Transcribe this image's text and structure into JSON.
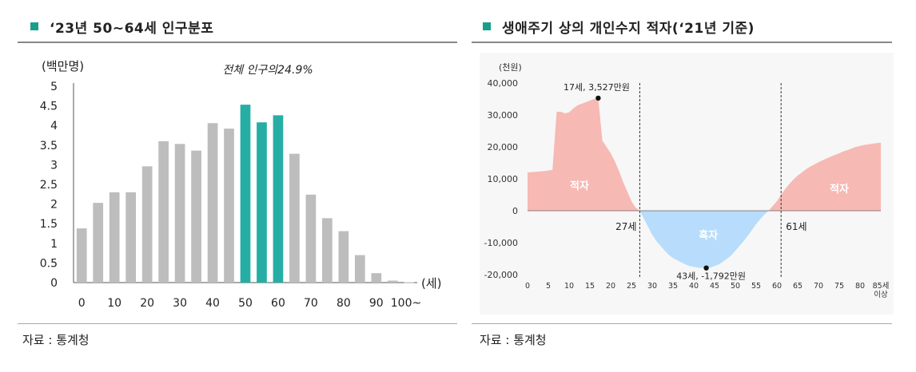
{
  "left": {
    "title": "‘23년 50~64세 인구분포",
    "source": "자료 : 통계청"
  },
  "right": {
    "title": "생애주기 상의 개인수지 적자(‘21년 기준)",
    "source": "자료 : 통계청"
  },
  "chart_data": [
    {
      "type": "bar",
      "ylabel": "(백만명)",
      "xlabel": "(세)",
      "annotation": "전체 인구의24.9%",
      "ylim": [
        0,
        5
      ],
      "y_ticks": [
        "0",
        "0.5",
        "1",
        "1.5",
        "2",
        "2.5",
        "3",
        "3.5",
        "4",
        "4.5",
        "5"
      ],
      "x_tick_labels": [
        "0",
        "10",
        "20",
        "30",
        "40",
        "50",
        "60",
        "70",
        "80",
        "90",
        "100~"
      ],
      "categories": [
        "0",
        "5",
        "10",
        "15",
        "20",
        "25",
        "30",
        "35",
        "40",
        "45",
        "50",
        "55",
        "60",
        "65",
        "70",
        "75",
        "80",
        "85",
        "90",
        "95",
        "100"
      ],
      "values": [
        1.38,
        2.03,
        2.3,
        2.3,
        2.96,
        3.6,
        3.53,
        3.36,
        4.06,
        3.92,
        4.53,
        4.08,
        4.26,
        3.28,
        2.24,
        1.64,
        1.31,
        0.7,
        0.24,
        0.05,
        0.01
      ],
      "highlight_categories": [
        "50",
        "55",
        "60"
      ],
      "colors": {
        "bar": "#bdbdbd",
        "highlight": "#26aea5"
      }
    },
    {
      "type": "area",
      "ylabel": "(천원)",
      "ylim": [
        -20000,
        40000
      ],
      "y_ticks": [
        "40,000",
        "30,000",
        "20,000",
        "10,000",
        "0",
        "-10,000",
        "-20,000"
      ],
      "x_ticks": [
        "0",
        "5",
        "10",
        "15",
        "20",
        "25",
        "30",
        "35",
        "40",
        "45",
        "50",
        "55",
        "60",
        "65",
        "70",
        "75",
        "80",
        "85세"
      ],
      "x_tick_last_line2": "이상",
      "x": [
        0,
        1,
        2,
        3,
        4,
        5,
        6,
        7,
        8,
        9,
        10,
        11,
        12,
        13,
        14,
        15,
        16,
        17,
        18,
        19,
        20,
        21,
        22,
        23,
        24,
        25,
        26,
        27,
        28,
        29,
        30,
        31,
        32,
        33,
        34,
        35,
        36,
        37,
        38,
        39,
        40,
        41,
        42,
        43,
        44,
        45,
        46,
        47,
        48,
        49,
        50,
        51,
        52,
        53,
        54,
        55,
        56,
        57,
        58,
        59,
        60,
        61,
        62,
        63,
        64,
        65,
        66,
        67,
        68,
        69,
        70,
        71,
        72,
        73,
        74,
        75,
        76,
        77,
        78,
        79,
        80,
        81,
        82,
        83,
        84,
        85
      ],
      "y": [
        12000,
        12100,
        12200,
        12300,
        12400,
        12600,
        12800,
        31000,
        31000,
        30500,
        30800,
        32000,
        33000,
        33500,
        34000,
        34500,
        35000,
        35270,
        22000,
        20000,
        18000,
        15500,
        12500,
        9000,
        6000,
        3000,
        1000,
        0,
        -2500,
        -5000,
        -7500,
        -9500,
        -11000,
        -12500,
        -13800,
        -14800,
        -15500,
        -16200,
        -16800,
        -17300,
        -17600,
        -17800,
        -17900,
        -17920,
        -17800,
        -17300,
        -16800,
        -16000,
        -15000,
        -14000,
        -12500,
        -11000,
        -9500,
        -7800,
        -6000,
        -4200,
        -2600,
        -1200,
        0,
        1500,
        3000,
        5000,
        6800,
        8400,
        9800,
        11000,
        12000,
        13000,
        13800,
        14500,
        15200,
        15800,
        16400,
        17000,
        17500,
        18000,
        18600,
        19000,
        19500,
        20000,
        20300,
        20600,
        20800,
        21000,
        21200,
        21300
      ],
      "dividers": [
        27,
        61
      ],
      "points": [
        {
          "x": 17,
          "y": 35270,
          "label": "17세, 3,527만원"
        },
        {
          "x": 43,
          "y": -17920,
          "label": "43세, -1,792만원"
        }
      ],
      "region_labels": [
        "적자",
        "흑자",
        "적자"
      ],
      "divider_labels": [
        "27세",
        "61세"
      ],
      "colors": {
        "deficit": "#f6b9b4",
        "surplus": "#b8dcfb",
        "label": "#ffffff"
      }
    }
  ]
}
